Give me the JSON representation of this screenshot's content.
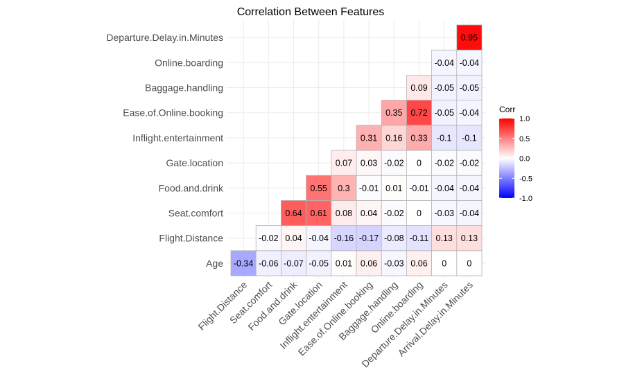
{
  "chart_data": {
    "type": "heatmap",
    "title": "Correlation Between Features",
    "x_categories": [
      "Flight.Distance",
      "Seat.comfort",
      "Food.and.drink",
      "Gate.location",
      "Inflight.entertainment",
      "Ease.of.Online.booking",
      "Baggage.handling",
      "Online.boarding",
      "Departure.Delay.in.Minutes",
      "Arrival.Delay.in.Minutes"
    ],
    "y_categories": [
      "Age",
      "Flight.Distance",
      "Seat.comfort",
      "Food.and.drink",
      "Gate.location",
      "Inflight.entertainment",
      "Ease.of.Online.booking",
      "Baggage.handling",
      "Online.boarding",
      "Departure.Delay.in.Minutes"
    ],
    "values": [
      [
        -0.34,
        -0.06,
        -0.07,
        -0.05,
        0.01,
        0.06,
        -0.03,
        0.06,
        0,
        0
      ],
      [
        null,
        -0.02,
        0.04,
        -0.04,
        -0.16,
        -0.17,
        -0.08,
        -0.11,
        0.13,
        0.13
      ],
      [
        null,
        null,
        0.64,
        0.61,
        0.08,
        0.04,
        -0.02,
        0,
        -0.03,
        -0.04
      ],
      [
        null,
        null,
        null,
        0.55,
        0.3,
        -0.01,
        0.01,
        -0.01,
        -0.04,
        -0.04
      ],
      [
        null,
        null,
        null,
        null,
        0.07,
        0.03,
        -0.02,
        0,
        -0.02,
        -0.02
      ],
      [
        null,
        null,
        null,
        null,
        null,
        0.31,
        0.16,
        0.33,
        -0.1,
        -0.1
      ],
      [
        null,
        null,
        null,
        null,
        null,
        null,
        0.35,
        0.72,
        -0.05,
        -0.04
      ],
      [
        null,
        null,
        null,
        null,
        null,
        null,
        null,
        0.09,
        -0.05,
        -0.05
      ],
      [
        null,
        null,
        null,
        null,
        null,
        null,
        null,
        null,
        -0.04,
        -0.04
      ],
      [
        null,
        null,
        null,
        null,
        null,
        null,
        null,
        null,
        null,
        0.95
      ]
    ],
    "color_scale": {
      "low": "#0000ff",
      "mid": "#ffffff",
      "high": "#ff0000",
      "limits": [
        -1,
        1
      ]
    },
    "legend": {
      "title": "Corr",
      "ticks": [
        "1.0",
        "0.5",
        "0.0",
        "-0.5",
        "-1.0"
      ],
      "placement": "right"
    },
    "grid": true,
    "xlabel": "",
    "ylabel": ""
  }
}
